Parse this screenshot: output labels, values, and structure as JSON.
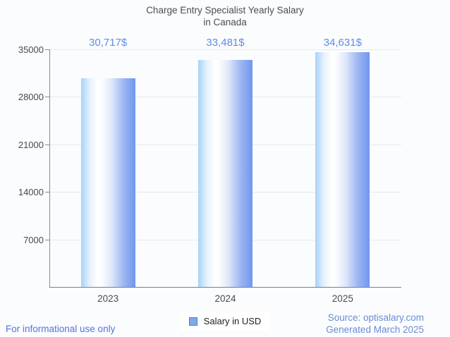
{
  "title": {
    "line1": "Charge Entry Specialist Yearly Salary",
    "line2": "in Canada"
  },
  "chart_data": {
    "type": "bar",
    "title": "Charge Entry Specialist Yearly Salary in Canada",
    "categories": [
      "2023",
      "2024",
      "2025"
    ],
    "values": [
      30717,
      33481,
      34631
    ],
    "value_labels": [
      "30,717$",
      "33,481$",
      "34,631$"
    ],
    "series_name": "Salary in USD",
    "xlabel": "",
    "ylabel": "",
    "ylim": [
      0,
      35000
    ],
    "yticks": [
      7000,
      14000,
      21000,
      28000,
      35000
    ],
    "grid": "horizontal",
    "legend_position": "bottom-center",
    "bar_color_gradient": [
      "#a7d2f9",
      "#ffffff",
      "#6f97ee"
    ],
    "value_label_color": "#5d8ce9",
    "gridline_color": "#e9e9e9",
    "axis_color": "#8a8a8a"
  },
  "legend": {
    "label": "Salary in USD",
    "swatch_color": "#7cabe8"
  },
  "footer": {
    "left_note": "For informational use only",
    "source_line1": "Source: optisalary.com",
    "source_line2": "Generated March 2025"
  }
}
